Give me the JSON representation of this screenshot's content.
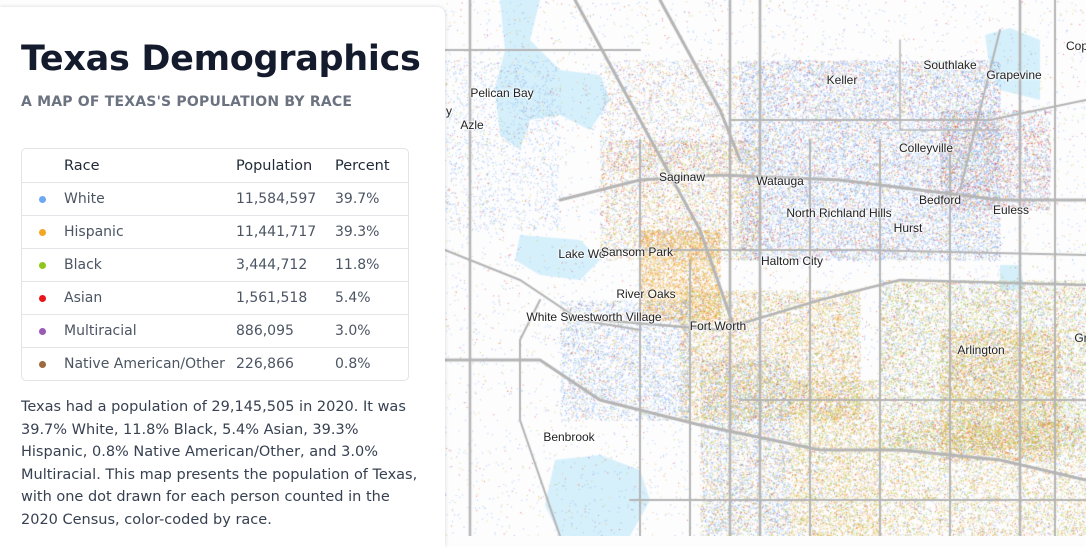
{
  "header": {
    "title": "Texas Demographics",
    "subtitle": "A MAP OF TEXAS'S POPULATION BY RACE"
  },
  "legend": {
    "columns": [
      "",
      "Race",
      "Population",
      "Percent"
    ],
    "rows": [
      {
        "race": "White",
        "population": "11,584,597",
        "percent": "39.7%",
        "color": "#6ea8f5"
      },
      {
        "race": "Hispanic",
        "population": "11,441,717",
        "percent": "39.3%",
        "color": "#f5a623"
      },
      {
        "race": "Black",
        "population": "3,444,712",
        "percent": "11.8%",
        "color": "#8fc61a"
      },
      {
        "race": "Asian",
        "population": "1,561,518",
        "percent": "5.4%",
        "color": "#e8161b"
      },
      {
        "race": "Multiracial",
        "population": "886,095",
        "percent": "3.0%",
        "color": "#9b59b6"
      },
      {
        "race": "Native American/Other",
        "population": "226,866",
        "percent": "0.8%",
        "color": "#9c6a3c"
      }
    ]
  },
  "description": "Texas had a population of 29,145,505 in 2020. It was 39.7% White, 11.8% Black, 5.4% Asian, 39.3% Hispanic, 0.8% Native American/Other, and 3.0% Multiracial. This map presents the population of Texas, with one dot drawn for each person counted in the 2020 Census, color-coded by race.",
  "map": {
    "place_labels": [
      "Pelican Bay",
      "Azle",
      "y",
      "Keller",
      "Southlake",
      "Grapevine",
      "Cop",
      "Colleyville",
      "Saginaw",
      "Watauga",
      "North Richland Hills",
      "Bedford",
      "Euless",
      "Hurst",
      "Lake Wo",
      "Sansom Park",
      "Haltom City",
      "River Oaks",
      "White Swestworth Village",
      "Fort Worth",
      "Arlington",
      "Gr",
      "Benbrook"
    ],
    "colors": {
      "water": "#d6f0fb",
      "road": "#b5b5b5"
    }
  }
}
